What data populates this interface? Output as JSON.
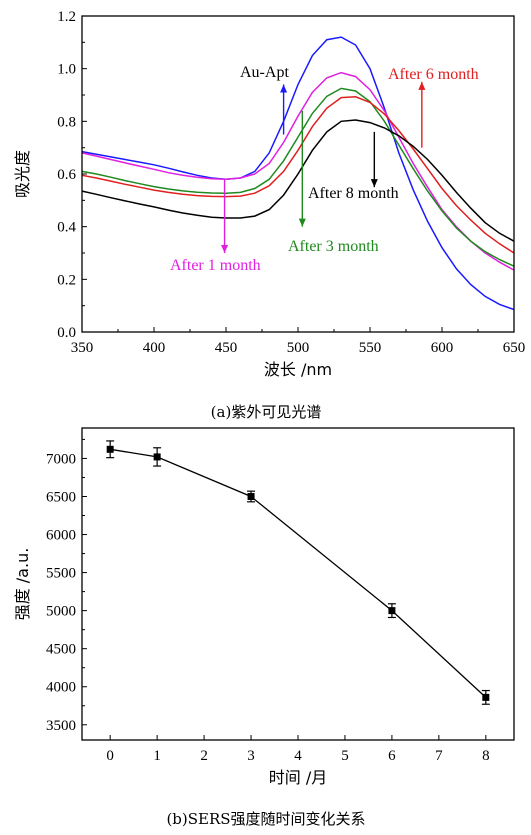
{
  "chart_data": [
    {
      "type": "line",
      "caption": "(a)紫外可见光谱",
      "xlabel": "波长 /nm",
      "ylabel": "吸光度",
      "xlim": [
        350,
        650
      ],
      "ylim": [
        0.0,
        1.2
      ],
      "xticks": [
        "350",
        "400",
        "450",
        "500",
        "550",
        "600",
        "650"
      ],
      "yticks": [
        "0.0",
        "0.2",
        "0.4",
        "0.6",
        "0.8",
        "1.0",
        "1.2"
      ],
      "series": [
        {
          "name": "Au-Apt",
          "color": "#1a1aff",
          "x": [
            350,
            360,
            370,
            380,
            390,
            400,
            410,
            420,
            430,
            440,
            450,
            460,
            470,
            480,
            490,
            500,
            510,
            520,
            530,
            540,
            550,
            560,
            570,
            580,
            590,
            600,
            610,
            620,
            630,
            640,
            650
          ],
          "y": [
            0.685,
            0.675,
            0.665,
            0.655,
            0.645,
            0.635,
            0.622,
            0.608,
            0.595,
            0.585,
            0.58,
            0.585,
            0.61,
            0.68,
            0.8,
            0.94,
            1.05,
            1.11,
            1.12,
            1.09,
            1.0,
            0.85,
            0.68,
            0.54,
            0.42,
            0.32,
            0.24,
            0.18,
            0.135,
            0.105,
            0.085
          ]
        },
        {
          "name": "After 1 month",
          "color": "#e020e0",
          "x": [
            350,
            360,
            370,
            380,
            390,
            400,
            410,
            420,
            430,
            440,
            450,
            460,
            470,
            480,
            490,
            500,
            510,
            520,
            530,
            540,
            550,
            560,
            570,
            580,
            590,
            600,
            610,
            620,
            630,
            640,
            650
          ],
          "y": [
            0.68,
            0.668,
            0.655,
            0.642,
            0.63,
            0.618,
            0.605,
            0.595,
            0.588,
            0.582,
            0.58,
            0.585,
            0.6,
            0.64,
            0.72,
            0.82,
            0.91,
            0.965,
            0.985,
            0.97,
            0.92,
            0.84,
            0.74,
            0.64,
            0.55,
            0.465,
            0.4,
            0.345,
            0.3,
            0.265,
            0.235
          ]
        },
        {
          "name": "After 3 month",
          "color": "#1f8a1f",
          "x": [
            350,
            360,
            370,
            380,
            390,
            400,
            410,
            420,
            430,
            440,
            450,
            460,
            470,
            480,
            490,
            500,
            510,
            520,
            530,
            540,
            550,
            560,
            570,
            580,
            590,
            600,
            610,
            620,
            630,
            640,
            650
          ],
          "y": [
            0.61,
            0.6,
            0.588,
            0.575,
            0.563,
            0.552,
            0.543,
            0.536,
            0.531,
            0.528,
            0.527,
            0.53,
            0.545,
            0.58,
            0.65,
            0.74,
            0.83,
            0.895,
            0.925,
            0.915,
            0.875,
            0.8,
            0.71,
            0.62,
            0.535,
            0.46,
            0.395,
            0.345,
            0.305,
            0.275,
            0.25
          ]
        },
        {
          "name": "After 6 month",
          "color": "#e01f1f",
          "x": [
            350,
            360,
            370,
            380,
            390,
            400,
            410,
            420,
            430,
            440,
            450,
            460,
            470,
            480,
            490,
            500,
            510,
            520,
            530,
            540,
            550,
            560,
            570,
            580,
            590,
            600,
            610,
            620,
            630,
            640,
            650
          ],
          "y": [
            0.595,
            0.585,
            0.573,
            0.561,
            0.55,
            0.539,
            0.53,
            0.523,
            0.518,
            0.515,
            0.514,
            0.516,
            0.527,
            0.555,
            0.61,
            0.69,
            0.78,
            0.85,
            0.89,
            0.893,
            0.872,
            0.828,
            0.765,
            0.695,
            0.62,
            0.545,
            0.48,
            0.425,
            0.375,
            0.335,
            0.3
          ]
        },
        {
          "name": "After 8 month",
          "color": "#000000",
          "x": [
            350,
            360,
            370,
            380,
            390,
            400,
            410,
            420,
            430,
            440,
            450,
            460,
            470,
            480,
            490,
            500,
            510,
            520,
            530,
            540,
            550,
            560,
            570,
            580,
            590,
            600,
            610,
            620,
            630,
            640,
            650
          ],
          "y": [
            0.535,
            0.523,
            0.51,
            0.498,
            0.486,
            0.475,
            0.463,
            0.452,
            0.443,
            0.436,
            0.433,
            0.433,
            0.44,
            0.465,
            0.52,
            0.6,
            0.69,
            0.76,
            0.8,
            0.805,
            0.795,
            0.775,
            0.745,
            0.705,
            0.655,
            0.595,
            0.53,
            0.47,
            0.415,
            0.375,
            0.345
          ]
        }
      ],
      "annotations": [
        {
          "text": "Au-Apt",
          "color": "#000000"
        },
        {
          "text": "After 6 month",
          "color": "#e01f1f"
        },
        {
          "text": "After 8 month",
          "color": "#000000"
        },
        {
          "text": "After 3 month",
          "color": "#1f8a1f"
        },
        {
          "text": "After 1 month",
          "color": "#e020e0"
        }
      ]
    },
    {
      "type": "line",
      "caption": "(b)SERS强度随时间变化关系",
      "xlabel": "时间 /月",
      "ylabel": "强度 /a.u.",
      "xlim": [
        -0.6,
        8.6
      ],
      "ylim": [
        3300,
        7400
      ],
      "xticks": [
        "0",
        "1",
        "2",
        "3",
        "4",
        "5",
        "6",
        "7",
        "8"
      ],
      "yticks": [
        "3500",
        "4000",
        "4500",
        "5000",
        "5500",
        "6000",
        "6500",
        "7000"
      ],
      "series": [
        {
          "x": [
            0,
            1,
            3,
            6,
            8
          ],
          "y": [
            7120,
            7020,
            6500,
            5000,
            3860
          ],
          "error": [
            110,
            120,
            70,
            90,
            90
          ]
        }
      ]
    }
  ]
}
